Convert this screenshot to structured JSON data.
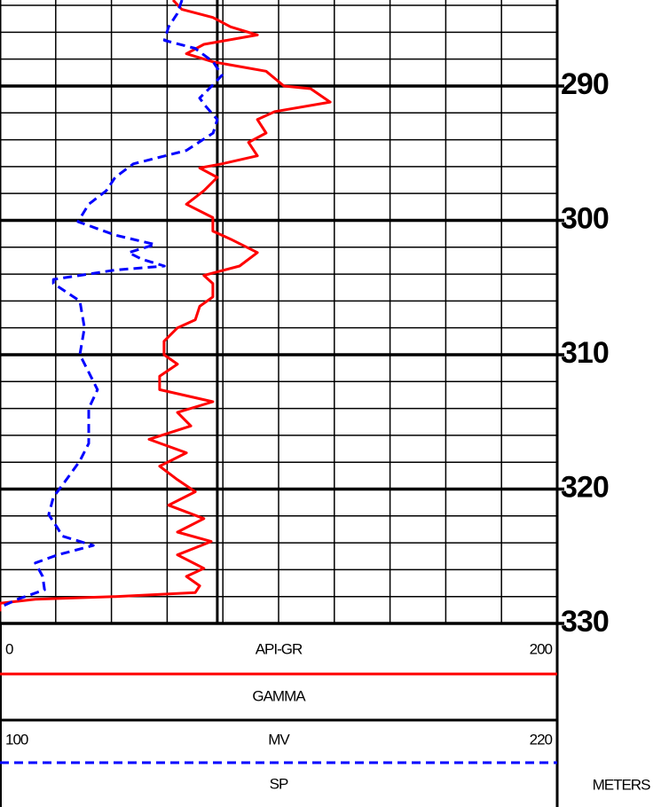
{
  "chart_data": {
    "type": "well_log",
    "y_label": "METERS",
    "ylim": [
      283.6,
      330
    ],
    "yticks": [
      290,
      300,
      310,
      320,
      330
    ],
    "ygrid": [
      284,
      286,
      288,
      290,
      292,
      294,
      296,
      298,
      300,
      302,
      304,
      306,
      308,
      310,
      312,
      314,
      316,
      318,
      320,
      322,
      324,
      326,
      328,
      330
    ],
    "xgrid": [
      0,
      20,
      40,
      60,
      80,
      100,
      120,
      140,
      160,
      180,
      200
    ],
    "series": [
      {
        "name": "GAMMA",
        "unit": "API-GR",
        "color": "#ff0000",
        "dashed": false,
        "xlim": [
          0,
          200
        ],
        "cutoff": 78,
        "depth": [
          283.6,
          284.3,
          284.9,
          285.6,
          286.2,
          286.9,
          287.6,
          288.2,
          288.9,
          290.0,
          290.2,
          291.2,
          291.9,
          292.5,
          293.5,
          294.2,
          295.2,
          295.8,
          296.1,
          296.8,
          297.8,
          298.8,
          299.8,
          300.8,
          301.4,
          302.4,
          303.4,
          304.1,
          304.7,
          305.7,
          306.4,
          307.4,
          308.0,
          309.0,
          310.0,
          310.7,
          311.6,
          312.6,
          313.5,
          314.3,
          315.3,
          316.3,
          317.3,
          318.3,
          319.3,
          320.2,
          321.2,
          322.2,
          323.2,
          323.9,
          324.9,
          325.9,
          326.5,
          327.2,
          327.7,
          328.0,
          328.2,
          328.5,
          329.1
        ],
        "values": [
          62.1,
          65.3,
          76.4,
          82.8,
          92.4,
          73.2,
          66.9,
          76.4,
          95.5,
          101.9,
          111.5,
          118.5,
          98.7,
          92.4,
          95.5,
          89.2,
          92.4,
          79.6,
          71.7,
          78.0,
          73.2,
          66.9,
          76.4,
          76.4,
          82.8,
          92.4,
          86.0,
          73.2,
          76.4,
          76.4,
          71.7,
          70.1,
          63.7,
          58.9,
          58.9,
          63.7,
          57.3,
          57.3,
          76.4,
          63.7,
          68.5,
          53.5,
          66.9,
          57.3,
          63.7,
          70.1,
          60.5,
          73.2,
          63.7,
          75.8,
          63.7,
          73.2,
          66.9,
          71.7,
          70.1,
          41.4,
          12.7,
          0,
          0
        ]
      },
      {
        "name": "SP",
        "unit": "MV",
        "color": "#0000ff",
        "dashed": true,
        "xlim": [
          100,
          220
        ],
        "depth": [
          283.6,
          284.6,
          285.6,
          286.6,
          287.2,
          288.2,
          289.2,
          289.9,
          290.9,
          291.5,
          292.5,
          293.5,
          294.8,
          295.8,
          296.8,
          297.8,
          298.8,
          300.1,
          301.1,
          301.8,
          302.4,
          302.9,
          303.4,
          303.7,
          304.4,
          304.7,
          306.0,
          308.0,
          310.0,
          311.3,
          312.6,
          314.0,
          315.3,
          316.6,
          317.9,
          319.3,
          320.6,
          321.9,
          322.9,
          323.5,
          324.2,
          324.9,
          325.5,
          326.5,
          327.5,
          328.2,
          328.8
        ],
        "values": [
          139.2,
          138.2,
          136.3,
          135.4,
          142.0,
          145.9,
          147.8,
          145.9,
          143.0,
          144.3,
          146.8,
          145.9,
          140.1,
          128.7,
          124.8,
          122.9,
          119.1,
          116.8,
          124.8,
          133.4,
          127.7,
          130.6,
          135.4,
          124.8,
          111.5,
          111.5,
          117.2,
          118.2,
          117.2,
          119.1,
          121.0,
          119.1,
          119.1,
          119.1,
          117.2,
          114.3,
          111.5,
          110.5,
          112.4,
          113.4,
          120.1,
          112.4,
          107.6,
          109.2,
          109.6,
          103.8,
          100.0
        ]
      }
    ]
  }
}
